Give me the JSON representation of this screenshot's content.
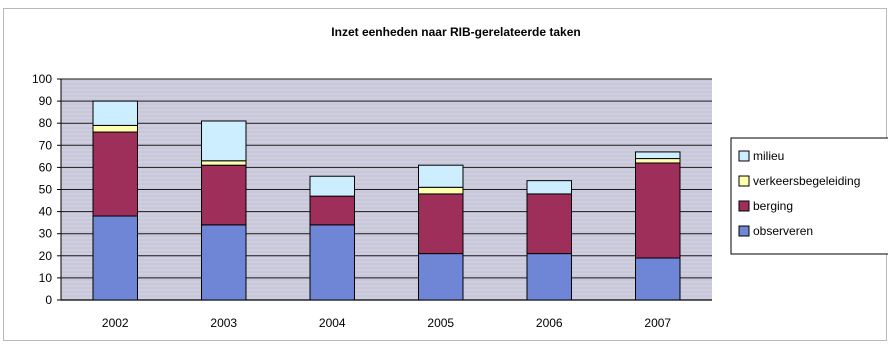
{
  "chart_data": {
    "type": "bar",
    "stacked": true,
    "title": "Inzet eenheden naar RIB-gerelateerde taken",
    "xlabel": "",
    "ylabel": "",
    "categories": [
      "2002",
      "2003",
      "2004",
      "2005",
      "2006",
      "2007"
    ],
    "ylim": [
      0,
      100
    ],
    "yticks": [
      0,
      10,
      20,
      30,
      40,
      50,
      60,
      70,
      80,
      90,
      100
    ],
    "grid": true,
    "legend_position": "right",
    "series": [
      {
        "name": "observeren",
        "color": "#6f86d6",
        "values": [
          38,
          34,
          34,
          21,
          21,
          19
        ]
      },
      {
        "name": "berging",
        "color": "#9e2f5b",
        "values": [
          38,
          27,
          13,
          27,
          27,
          43
        ]
      },
      {
        "name": "verkeersbegeleiding",
        "color": "#ffffb0",
        "values": [
          3,
          2,
          0,
          3,
          0,
          2
        ]
      },
      {
        "name": "milieu",
        "color": "#cceeff",
        "values": [
          11,
          18,
          9,
          10,
          6,
          3
        ]
      }
    ],
    "legend_order": [
      "milieu",
      "verkeersbegeleiding",
      "berging",
      "observeren"
    ],
    "plot_background": "#c8c8da"
  }
}
